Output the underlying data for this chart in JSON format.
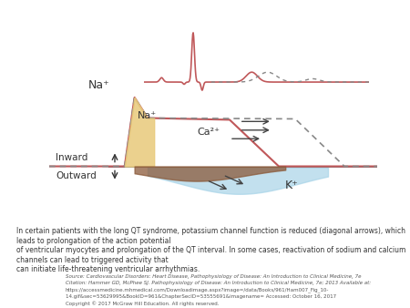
{
  "bg_color": "#ffffff",
  "ecg_color": "#c0585a",
  "ap_solid_color": "#c0585a",
  "ap_dashed_color": "#888888",
  "na_fill_color": "#e8c97a",
  "ca_fill_color": "#8b5a3a",
  "k_fill_color": "#a8d4e8",
  "baseline_color": "#888888",
  "arrow_color": "#444444",
  "text_color": "#333333",
  "na_label_top": "Na⁺",
  "na_label_mid": "Na⁺",
  "ca_label": "Ca²⁺",
  "k_label": "K⁺",
  "inward_label": "Inward",
  "outward_label": "Outward",
  "caption": "In certain patients with the long QT syndrome, potassium channel function is reduced (diagonal arrows), which leads to prolongation of the action potential\nof ventricular myocytes and prolongation of the QT interval. In some cases, reactivation of sodium and calcium channels can lead to triggered activity that\ncan initiate life-threatening ventricular arrhythmias.",
  "source_text": "Source: Cardiovascular Disorders: Heart Disease, Pathophysiology of Disease: An Introduction to Clinical Medicine, 7e",
  "citation_text": "Citation: Hammer GD, McPhee SJ. Pathophysiology of Disease: An Introduction to Clinical Medicine, 7e; 2013 Available at:",
  "url_text": "https://accessmedicine.mhmedical.com/Downloadimage.aspx?image=/data/Books/961/Ham007_Fig_10-",
  "url2_text": "14.gif&sec=53629995&BookID=961&ChapterSecID=53555691&imagename= Accessed: October 16, 2017",
  "copy_text": "Copyright © 2017 McGraw Hill Education. All rights reserved."
}
